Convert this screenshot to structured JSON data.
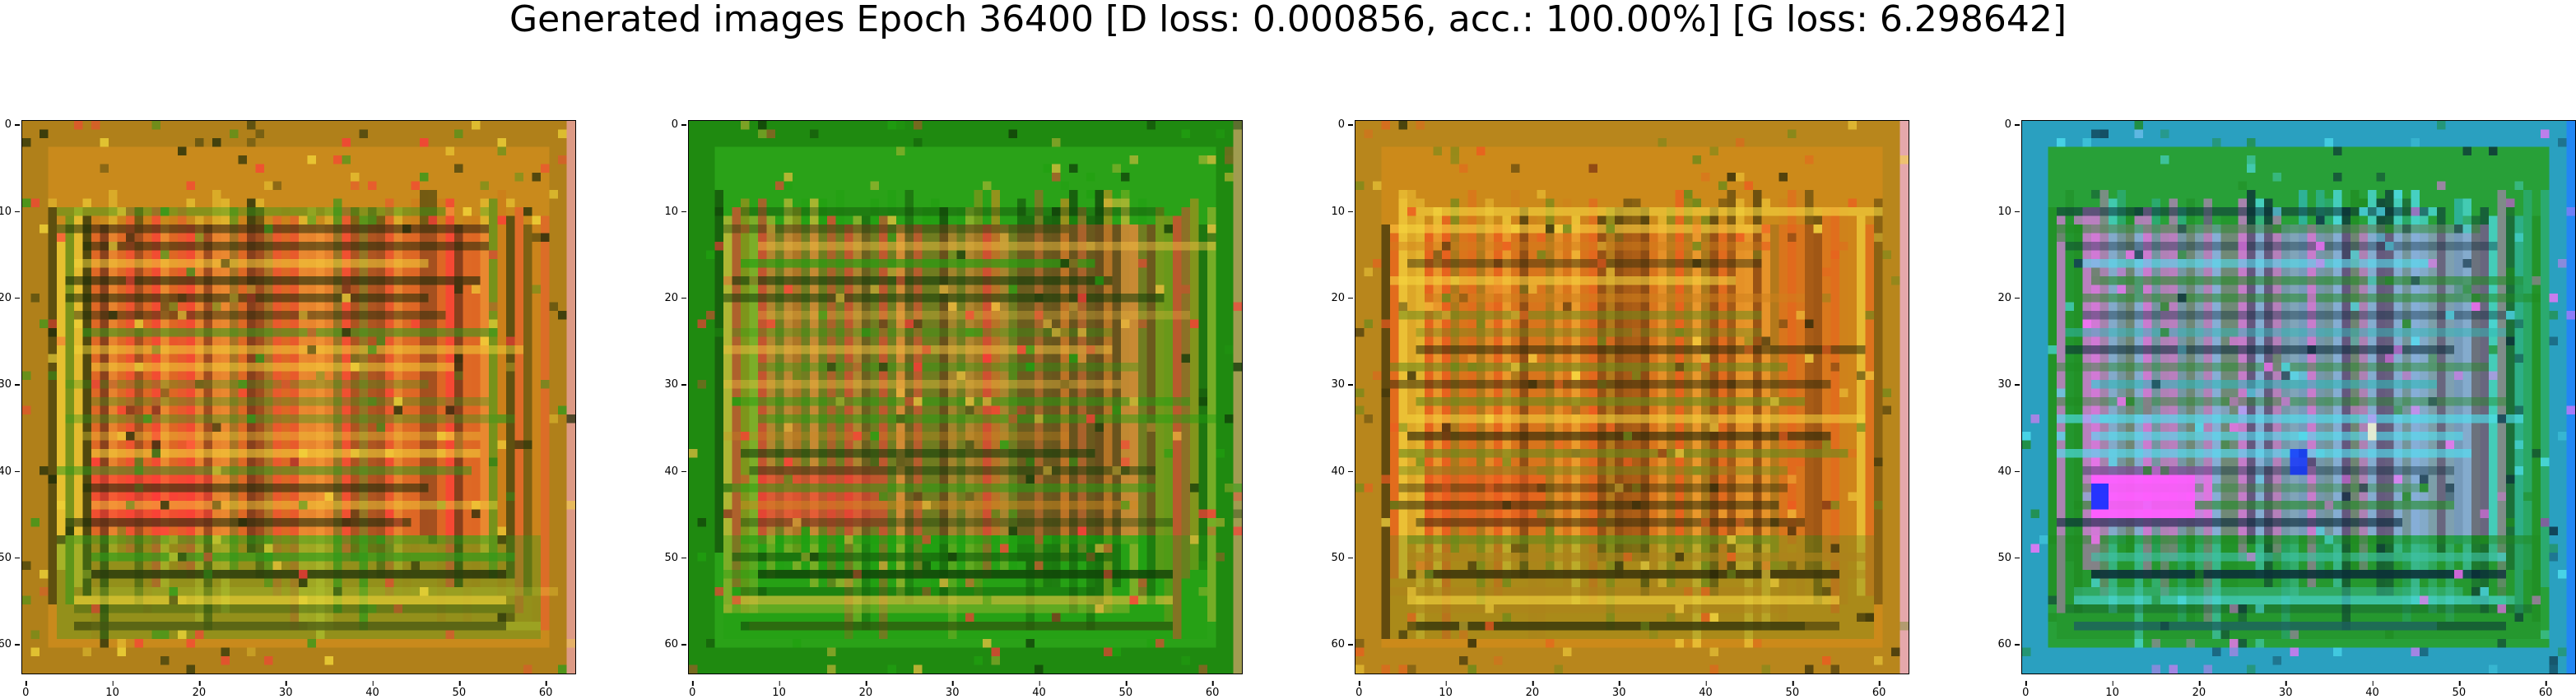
{
  "figure": {
    "title": "Generated images Epoch 36400 [D loss: 0.000856, acc.: 100.00%] [G loss: 6.298642]"
  },
  "axes": {
    "xticks": [
      "0",
      "10",
      "20",
      "30",
      "40",
      "50",
      "60"
    ],
    "yticks": [
      "0",
      "10",
      "20",
      "30",
      "40",
      "50",
      "60"
    ],
    "xlim": [
      -0.5,
      63.5
    ],
    "ylim": [
      63.5,
      -0.5
    ]
  },
  "panels": [
    {
      "palette": {
        "base": "#c98a1c",
        "frame": "#b0801a",
        "mid": "#cf7a1a",
        "hot": "#ff3a3a",
        "accent": "#f2d83a",
        "cool": "#2e9a1a",
        "dark": "#1a2a08",
        "edge": "#e8a0a0"
      }
    },
    {
      "palette": {
        "base": "#2aa218",
        "frame": "#1f8a10",
        "mid": "#cf8a20",
        "hot": "#ff3838",
        "accent": "#f0c040",
        "cool": "#20a010",
        "dark": "#0f3a08",
        "edge": "#c0a060"
      }
    },
    {
      "palette": {
        "base": "#cc8a1a",
        "frame": "#b8861c",
        "mid": "#d0801c",
        "hot": "#ee5a20",
        "accent": "#f6d640",
        "cool": "#6a8a1a",
        "dark": "#2a2808",
        "edge": "#f0b0d0"
      }
    },
    {
      "palette": {
        "base": "#28a038",
        "frame": "#2aa0c0",
        "mid": "#30b8b8",
        "hot": "#ff70ff",
        "accent": "#50e0f0",
        "cool": "#1f8a20",
        "dark": "#0a2a3a",
        "edge": "#2080ff"
      }
    }
  ]
}
